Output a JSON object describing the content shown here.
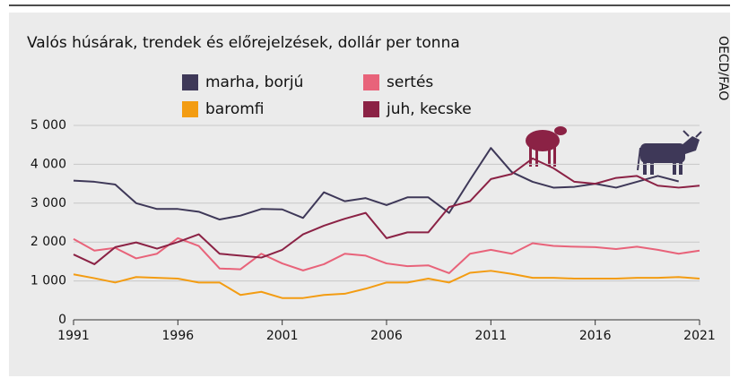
{
  "chart_data": {
    "type": "line",
    "title": "Valós húsárak, trendek és előrejelzések, dollár per tonna",
    "source": "OECD/FAO",
    "x": [
      1991,
      1992,
      1993,
      1994,
      1995,
      1996,
      1997,
      1998,
      1999,
      2000,
      2001,
      2002,
      2003,
      2004,
      2005,
      2006,
      2007,
      2008,
      2009,
      2010,
      2011,
      2012,
      2013,
      2014,
      2015,
      2016,
      2017,
      2018,
      2019,
      2020,
      2021
    ],
    "series": [
      {
        "name": "marha, borjú",
        "color": "#3e3858",
        "values": [
          3580,
          3550,
          3480,
          3000,
          2850,
          2850,
          2780,
          2580,
          2680,
          2850,
          2840,
          2620,
          3280,
          3050,
          3130,
          2950,
          3150,
          3150,
          2750,
          3600,
          4420,
          3800,
          3550,
          3400,
          3420,
          3500,
          3400,
          3550,
          3700,
          3560,
          null
        ]
      },
      {
        "name": "sertés",
        "color": "#e8637a",
        "values": [
          2080,
          1780,
          1850,
          1580,
          1700,
          2100,
          1900,
          1320,
          1300,
          1700,
          1450,
          1270,
          1430,
          1700,
          1650,
          1450,
          1380,
          1400,
          1200,
          1700,
          1800,
          1700,
          1970,
          1900,
          1880,
          1870,
          1820,
          1880,
          1800,
          1700,
          1780
        ]
      },
      {
        "name": "baromfi",
        "color": "#f39c12",
        "values": [
          1170,
          1070,
          960,
          1100,
          1080,
          1060,
          960,
          960,
          640,
          720,
          560,
          560,
          640,
          670,
          800,
          960,
          960,
          1060,
          960,
          1210,
          1260,
          1180,
          1080,
          1080,
          1060,
          1060,
          1060,
          1080,
          1080,
          1100,
          1060
        ]
      },
      {
        "name": "juh, kecske",
        "color": "#8b2245",
        "values": [
          1680,
          1430,
          1870,
          1990,
          1830,
          2000,
          2200,
          1700,
          1650,
          1600,
          1800,
          2200,
          2420,
          2600,
          2750,
          2100,
          2250,
          2250,
          2900,
          3050,
          3620,
          3750,
          4150,
          3900,
          3550,
          3500,
          3650,
          3700,
          3450,
          3400,
          3450
        ]
      }
    ],
    "xlim": [
      1991,
      2021
    ],
    "xticks": [
      1991,
      1996,
      2001,
      2006,
      2011,
      2016,
      2021
    ],
    "ylim": [
      0,
      5000
    ],
    "yticks": [
      0,
      {
        "value": 1000,
        "label": "1 000"
      },
      {
        "value": 2000,
        "label": "2 000"
      },
      {
        "value": 3000,
        "label": "3 000"
      },
      {
        "value": 4000,
        "label": "4 000"
      },
      {
        "value": 5000,
        "label": "5 000"
      }
    ],
    "grid": true
  }
}
